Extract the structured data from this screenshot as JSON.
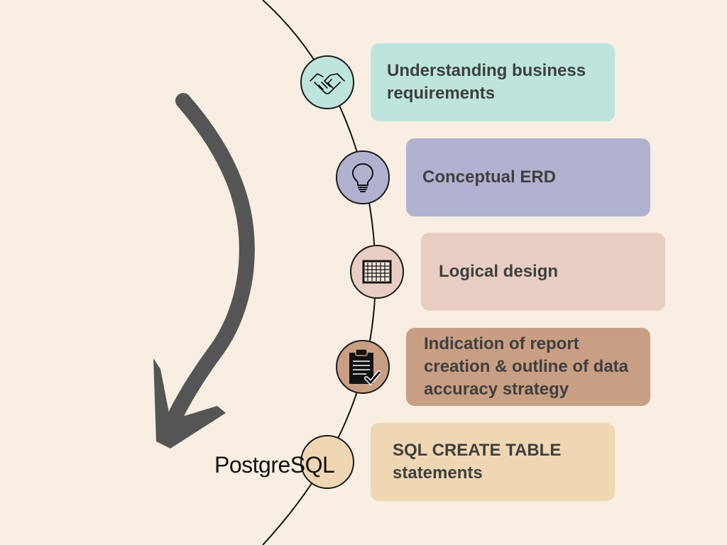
{
  "colors": {
    "background": "#f8efe2",
    "arc": "#111111",
    "arrow": "#555555",
    "text": "#3f3f3f"
  },
  "steps": [
    {
      "label": "Understanding business requirements",
      "color": "#bde5dd",
      "icon": "handshake-icon"
    },
    {
      "label": "Conceptual ERD",
      "color": "#b1b2d0",
      "icon": "lightbulb-icon"
    },
    {
      "label": "Logical design",
      "color": "#e8cec2",
      "icon": "grid-table-icon"
    },
    {
      "label": "Indication of report creation & outline of data accuracy strategy",
      "color": "#c99f84",
      "icon": "clipboard-check-icon"
    },
    {
      "label": "SQL CREATE TABLE statements",
      "color": "#f0d7b3",
      "icon": "postgresql-logo"
    }
  ],
  "logo": {
    "text": "PostgreSQL"
  },
  "arrow": {
    "direction": "down-curved"
  }
}
